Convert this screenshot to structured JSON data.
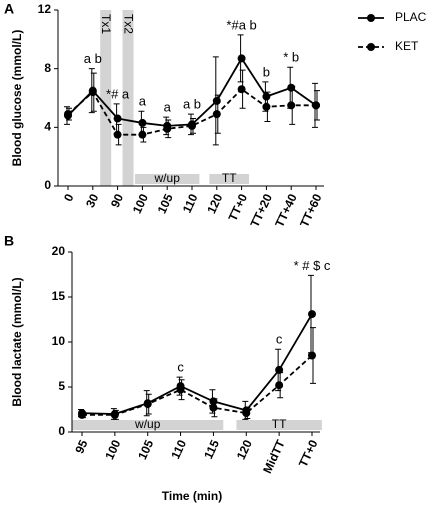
{
  "chart_data": [
    {
      "type": "line",
      "panel": "A",
      "ylabel": "Blood glucose (mmol/L)",
      "categories": [
        "0",
        "30",
        "90",
        "100",
        "105",
        "110",
        "120",
        "TT+0",
        "TT+20",
        "TT+40",
        "TT+60"
      ],
      "series": [
        {
          "name": "PLAC",
          "color": "#000000",
          "dashed": false,
          "values": [
            4.8,
            6.5,
            4.6,
            4.3,
            4.1,
            4.2,
            5.8,
            8.7,
            6.1,
            6.7,
            5.5
          ],
          "errors": [
            0.6,
            1.5,
            1.0,
            0.8,
            0.6,
            0.7,
            3.0,
            1.6,
            1.0,
            1.4,
            1.5
          ]
        },
        {
          "name": "KET",
          "color": "#000000",
          "dashed": true,
          "values": [
            4.9,
            6.4,
            3.5,
            3.5,
            3.9,
            4.1,
            4.9,
            6.6,
            5.4,
            5.5,
            5.5
          ],
          "errors": [
            0.4,
            1.3,
            0.7,
            0.5,
            0.6,
            0.5,
            1.3,
            1.3,
            1.0,
            1.3,
            1.0
          ]
        }
      ],
      "ylim": [
        0,
        12
      ],
      "yticks": [
        0,
        4,
        8,
        12
      ],
      "annotations": [
        {
          "category": "30",
          "text": "a b"
        },
        {
          "category": "90",
          "text": "*# a"
        },
        {
          "category": "100",
          "text": "a"
        },
        {
          "category": "105",
          "text": "a"
        },
        {
          "category": "110",
          "text": "a b"
        },
        {
          "category": "TT+0",
          "text": "*#a b"
        },
        {
          "category": "TT+20",
          "text": "b"
        },
        {
          "category": "TT+40",
          "text": "* b"
        }
      ],
      "treatments": [
        "Tx1",
        "Tx2"
      ],
      "bands": [
        {
          "label": "w/up",
          "from": "100",
          "to": "110"
        },
        {
          "label": "TT",
          "from": "120",
          "to": "TT+0"
        }
      ],
      "legend": "upper right"
    },
    {
      "type": "line",
      "panel": "B",
      "ylabel": "Blood lactate (mmol/L)",
      "xlabel": "Time (min)",
      "categories": [
        "95",
        "100",
        "105",
        "110",
        "115",
        "120",
        "MidTT",
        "TT+0"
      ],
      "series": [
        {
          "color": "#000000",
          "dashed": false,
          "values": [
            2.1,
            2.0,
            3.2,
            5.1,
            3.4,
            2.4,
            6.9,
            13.1
          ],
          "errors": [
            0.4,
            0.6,
            1.4,
            1.0,
            1.3,
            1.0,
            2.3,
            4.3
          ]
        },
        {
          "color": "#000000",
          "dashed": true,
          "values": [
            1.9,
            1.9,
            3.1,
            4.7,
            2.7,
            2.1,
            5.2,
            8.5
          ],
          "errors": [
            0.3,
            0.5,
            1.1,
            1.1,
            1.0,
            0.6,
            1.4,
            3.1
          ]
        }
      ],
      "ylim": [
        0,
        20
      ],
      "yticks": [
        0,
        5,
        10,
        15,
        20
      ],
      "annotations": [
        {
          "category": "110",
          "text": "c"
        },
        {
          "category": "MidTT",
          "text": "c"
        },
        {
          "category": "TT+0",
          "text": "* # $ c"
        }
      ],
      "bands": [
        {
          "label": "w/up",
          "from": "95",
          "to": "115"
        },
        {
          "label": "TT",
          "from": "120",
          "to": "TT+0"
        }
      ]
    }
  ]
}
